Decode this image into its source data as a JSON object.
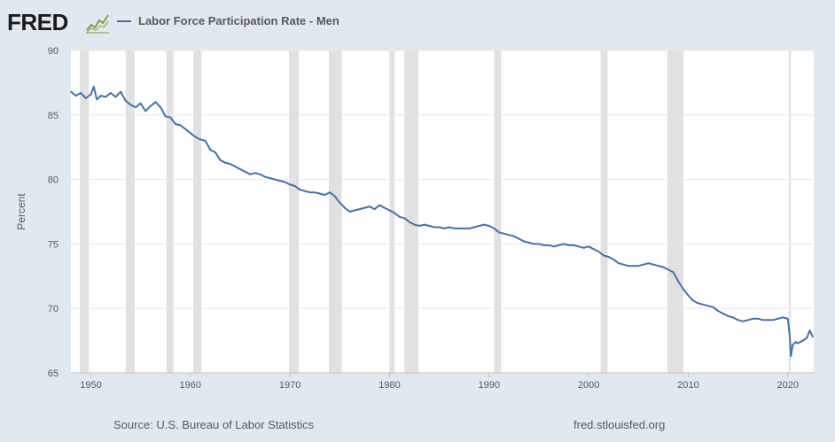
{
  "brand": {
    "logo_text": "FRED"
  },
  "legend": {
    "label": "Labor Force Participation Rate - Men"
  },
  "footer": {
    "source": "Source: U.S. Bureau of Labor Statistics",
    "site": "fred.stlouisfed.org"
  },
  "colors": {
    "line": "#4572a7",
    "recession": "#e1e1e1",
    "background": "#e1e9f0",
    "plot": "#ffffff",
    "grid": "#e6e6e6"
  },
  "chart_data": {
    "type": "line",
    "ylabel": "Percent",
    "xlabel": "",
    "ylim": [
      65,
      90
    ],
    "xlim": [
      1948,
      2022.6
    ],
    "yticks": [
      65,
      70,
      75,
      80,
      85,
      90
    ],
    "xticks": [
      1950,
      1960,
      1970,
      1980,
      1990,
      2000,
      2010,
      2020
    ],
    "grid": true,
    "recessions": [
      [
        1948.9,
        1949.8
      ],
      [
        1953.5,
        1954.4
      ],
      [
        1957.6,
        1958.3
      ],
      [
        1960.3,
        1961.1
      ],
      [
        1969.9,
        1970.9
      ],
      [
        1973.9,
        1975.2
      ],
      [
        1980.0,
        1980.5
      ],
      [
        1981.5,
        1982.9
      ],
      [
        1990.5,
        1991.2
      ],
      [
        2001.2,
        2001.9
      ],
      [
        2007.9,
        2009.5
      ],
      [
        2020.1,
        2020.3
      ]
    ],
    "series": [
      {
        "name": "Labor Force Participation Rate - Men",
        "x": [
          1948.0,
          1948.5,
          1949.0,
          1949.5,
          1950.0,
          1950.3,
          1950.6,
          1951.0,
          1951.5,
          1952.0,
          1952.5,
          1953.0,
          1953.5,
          1954.0,
          1954.5,
          1955.0,
          1955.5,
          1956.0,
          1956.5,
          1957.0,
          1957.5,
          1958.0,
          1958.5,
          1959.0,
          1959.5,
          1960.0,
          1960.5,
          1961.0,
          1961.5,
          1962.0,
          1962.5,
          1963.0,
          1963.5,
          1964.0,
          1964.5,
          1965.0,
          1965.5,
          1966.0,
          1966.5,
          1967.0,
          1967.5,
          1968.0,
          1968.5,
          1969.0,
          1969.5,
          1970.0,
          1970.5,
          1971.0,
          1971.5,
          1972.0,
          1972.5,
          1973.0,
          1973.5,
          1974.0,
          1974.5,
          1975.0,
          1975.5,
          1976.0,
          1976.5,
          1977.0,
          1977.5,
          1978.0,
          1978.5,
          1979.0,
          1979.5,
          1980.0,
          1980.5,
          1981.0,
          1981.5,
          1982.0,
          1982.5,
          1983.0,
          1983.5,
          1984.0,
          1984.5,
          1985.0,
          1985.5,
          1986.0,
          1986.5,
          1987.0,
          1987.5,
          1988.0,
          1988.5,
          1989.0,
          1989.5,
          1990.0,
          1990.5,
          1991.0,
          1991.5,
          1992.0,
          1992.5,
          1993.0,
          1993.5,
          1994.0,
          1994.5,
          1995.0,
          1995.5,
          1996.0,
          1996.5,
          1997.0,
          1997.5,
          1998.0,
          1998.5,
          1999.0,
          1999.5,
          2000.0,
          2000.5,
          2001.0,
          2001.5,
          2002.0,
          2002.5,
          2003.0,
          2003.5,
          2004.0,
          2004.5,
          2005.0,
          2005.5,
          2006.0,
          2006.5,
          2007.0,
          2007.5,
          2008.0,
          2008.5,
          2009.0,
          2009.5,
          2010.0,
          2010.5,
          2011.0,
          2011.5,
          2012.0,
          2012.5,
          2013.0,
          2013.5,
          2014.0,
          2014.5,
          2015.0,
          2015.5,
          2016.0,
          2016.5,
          2017.0,
          2017.5,
          2018.0,
          2018.5,
          2019.0,
          2019.5,
          2020.0,
          2020.2,
          2020.3,
          2020.5,
          2020.8,
          2021.0,
          2021.5,
          2021.9,
          2022.2,
          2022.5
        ],
        "values": [
          86.8,
          86.5,
          86.7,
          86.3,
          86.6,
          87.2,
          86.2,
          86.5,
          86.4,
          86.7,
          86.4,
          86.8,
          86.1,
          85.8,
          85.6,
          85.9,
          85.3,
          85.7,
          86.0,
          85.6,
          84.9,
          84.8,
          84.3,
          84.2,
          83.9,
          83.6,
          83.3,
          83.1,
          83.0,
          82.3,
          82.1,
          81.5,
          81.3,
          81.2,
          81.0,
          80.8,
          80.6,
          80.4,
          80.5,
          80.4,
          80.2,
          80.1,
          80.0,
          79.9,
          79.8,
          79.6,
          79.5,
          79.2,
          79.1,
          79.0,
          79.0,
          78.9,
          78.8,
          79.0,
          78.7,
          78.2,
          77.8,
          77.5,
          77.6,
          77.7,
          77.8,
          77.9,
          77.7,
          78.0,
          77.8,
          77.6,
          77.4,
          77.1,
          77.0,
          76.7,
          76.5,
          76.4,
          76.5,
          76.4,
          76.3,
          76.3,
          76.2,
          76.3,
          76.2,
          76.2,
          76.2,
          76.2,
          76.3,
          76.4,
          76.5,
          76.4,
          76.2,
          75.9,
          75.8,
          75.7,
          75.6,
          75.4,
          75.2,
          75.1,
          75.0,
          75.0,
          74.9,
          74.9,
          74.8,
          74.9,
          75.0,
          74.9,
          74.9,
          74.8,
          74.7,
          74.8,
          74.6,
          74.4,
          74.1,
          74.0,
          73.8,
          73.5,
          73.4,
          73.3,
          73.3,
          73.3,
          73.4,
          73.5,
          73.4,
          73.3,
          73.2,
          73.0,
          72.8,
          72.1,
          71.5,
          71.0,
          70.6,
          70.4,
          70.3,
          70.2,
          70.1,
          69.8,
          69.6,
          69.4,
          69.3,
          69.1,
          69.0,
          69.1,
          69.2,
          69.2,
          69.1,
          69.1,
          69.1,
          69.2,
          69.3,
          69.2,
          67.8,
          66.3,
          67.2,
          67.4,
          67.3,
          67.5,
          67.7,
          68.3,
          67.8
        ]
      }
    ]
  }
}
